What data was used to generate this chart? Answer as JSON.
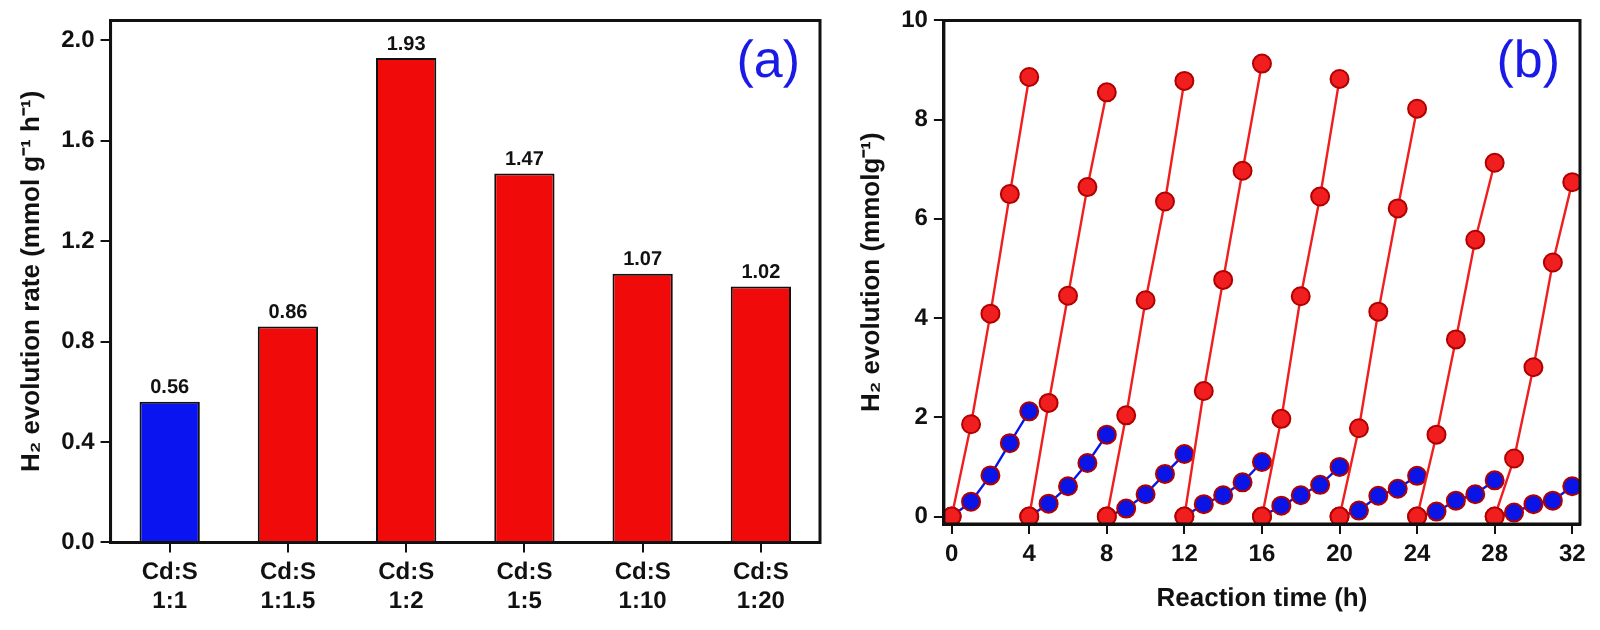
{
  "chart_data": [
    {
      "type": "bar",
      "ylabel": "H₂ evolution rate (mmol g⁻¹ h⁻¹)",
      "categories": [
        "Cd:S\n1:1",
        "Cd:S\n1:1.5",
        "Cd:S\n1:2",
        "Cd:S\n1:5",
        "Cd:S\n1:10",
        "Cd:S\n1:20"
      ],
      "values": [
        0.56,
        0.86,
        1.93,
        1.47,
        1.07,
        1.02
      ],
      "colors": [
        "#0a14f0",
        "#f00a0a",
        "#f00a0a",
        "#f00a0a",
        "#f00a0a",
        "#f00a0a"
      ],
      "data_labels": true,
      "ylim": [
        0,
        2.08
      ],
      "yticks": [
        {
          "value": 0,
          "label": "0.0"
        },
        0.4,
        0.8,
        1.2,
        1.6,
        {
          "value": 2,
          "label": "2.0"
        }
      ],
      "grid": false,
      "legend": false,
      "annotations": [
        "(a)"
      ]
    },
    {
      "type": "line",
      "xlabel": "Reaction time (h)",
      "ylabel": "H₂ evolution (mmolg⁻¹)",
      "marker": "circle",
      "grid": false,
      "legend": false,
      "xlim": [
        -0.4,
        32.4
      ],
      "xticks": [
        0,
        4,
        8,
        12,
        16,
        20,
        24,
        28,
        32
      ],
      "ylim": [
        -0.15,
        10
      ],
      "yticks": [
        0,
        2,
        4,
        6,
        8,
        10
      ],
      "annotations": [
        "(b)"
      ],
      "series": [
        {
          "color": "#f01e1e",
          "x": [
            0,
            1,
            2,
            3,
            4
          ],
          "values": [
            0,
            1.86,
            4.09,
            6.5,
            8.86
          ]
        },
        {
          "color": "#f01e1e",
          "x": [
            4,
            5,
            6,
            7,
            8
          ],
          "values": [
            0,
            2.29,
            4.45,
            6.64,
            8.55
          ]
        },
        {
          "color": "#f01e1e",
          "x": [
            8,
            9,
            10,
            11,
            12
          ],
          "values": [
            0,
            2.04,
            4.36,
            6.35,
            8.78
          ]
        },
        {
          "color": "#f01e1e",
          "x": [
            12,
            13,
            14,
            15,
            16
          ],
          "values": [
            0,
            2.53,
            4.77,
            6.97,
            9.13
          ]
        },
        {
          "color": "#f01e1e",
          "x": [
            16,
            17,
            18,
            19,
            20
          ],
          "values": [
            0,
            1.97,
            4.44,
            6.45,
            8.82
          ]
        },
        {
          "color": "#f01e1e",
          "x": [
            20,
            21,
            22,
            23,
            24
          ],
          "values": [
            0,
            1.78,
            4.13,
            6.21,
            8.22
          ]
        },
        {
          "color": "#f01e1e",
          "x": [
            24,
            25,
            26,
            27,
            28
          ],
          "values": [
            0,
            1.65,
            3.57,
            5.58,
            7.13
          ]
        },
        {
          "color": "#f01e1e",
          "x": [
            28,
            29,
            30,
            31,
            32
          ],
          "values": [
            0,
            1.17,
            3.01,
            5.12,
            6.74
          ]
        },
        {
          "color": "#0a14e6",
          "x": [
            0,
            1,
            2,
            3,
            4
          ],
          "values": [
            0,
            0.3,
            0.83,
            1.48,
            2.12
          ]
        },
        {
          "color": "#0a14e6",
          "x": [
            4,
            5,
            6,
            7,
            8
          ],
          "values": [
            0,
            0.26,
            0.61,
            1.08,
            1.65
          ]
        },
        {
          "color": "#0a14e6",
          "x": [
            8,
            9,
            10,
            11,
            12
          ],
          "values": [
            0,
            0.16,
            0.45,
            0.86,
            1.26
          ]
        },
        {
          "color": "#0a14e6",
          "x": [
            12,
            13,
            14,
            15,
            16
          ],
          "values": [
            0,
            0.25,
            0.43,
            0.69,
            1.1
          ]
        },
        {
          "color": "#0a14e6",
          "x": [
            16,
            17,
            18,
            19,
            20
          ],
          "values": [
            0,
            0.22,
            0.43,
            0.64,
            1.0
          ]
        },
        {
          "color": "#0a14e6",
          "x": [
            20,
            21,
            22,
            23,
            24
          ],
          "values": [
            0,
            0.12,
            0.42,
            0.56,
            0.82
          ]
        },
        {
          "color": "#0a14e6",
          "x": [
            24,
            25,
            26,
            27,
            28
          ],
          "values": [
            0,
            0.1,
            0.32,
            0.45,
            0.73
          ]
        },
        {
          "color": "#0a14e6",
          "x": [
            28,
            29,
            30,
            31,
            32
          ],
          "values": [
            0,
            0.08,
            0.25,
            0.32,
            0.61
          ]
        }
      ]
    }
  ]
}
